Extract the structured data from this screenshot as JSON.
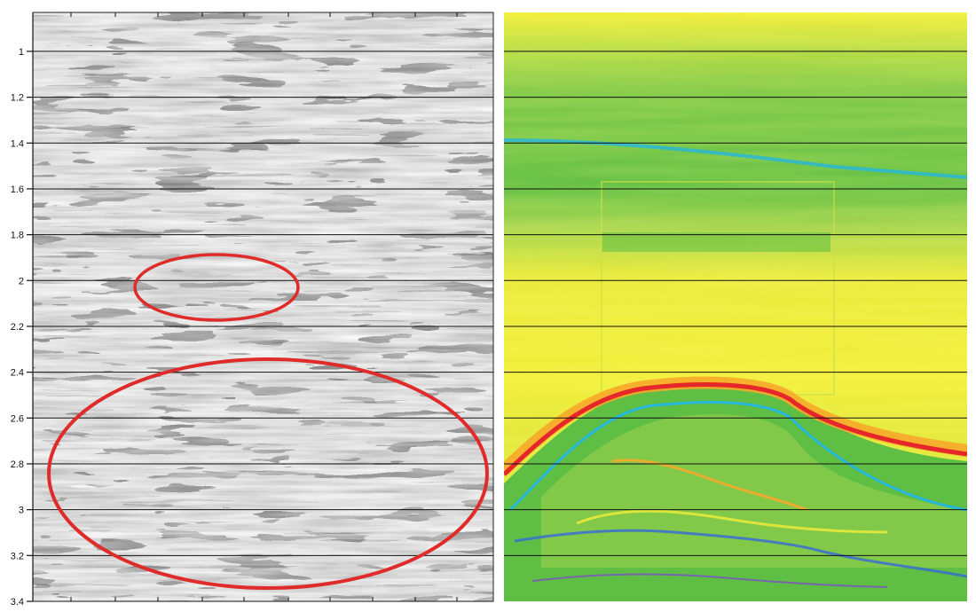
{
  "figure": {
    "time_axis": {
      "tick_labels": [
        "1",
        "1.2",
        "1.4",
        "1.6",
        "1.8",
        "2",
        "2.2",
        "2.4",
        "2.6",
        "2.8",
        "3",
        "3.2",
        "3.4"
      ],
      "tick_values": [
        1.0,
        1.2,
        1.4,
        1.6,
        1.8,
        2.0,
        2.2,
        2.4,
        2.6,
        2.8,
        3.0,
        3.2,
        3.4
      ],
      "range": [
        0.83,
        3.4
      ],
      "gridlines": true
    },
    "left_panel": {
      "kind": "grayscale seismic section",
      "highlight_color": "#e02b2b",
      "highlights": [
        {
          "name": "upper-ellipse",
          "time_range": [
            1.88,
            2.17
          ]
        },
        {
          "name": "lower-ellipse",
          "time_range": [
            2.35,
            3.35
          ]
        }
      ]
    },
    "right_panel": {
      "kind": "attribute color section",
      "colors": {
        "yellow": "#f2ee3a",
        "green": "#5fbe44",
        "light_green": "#9fd24f",
        "orange": "#f7a92a",
        "red": "#e5262a",
        "cyan": "#25b6dc",
        "blue": "#3a6fd0",
        "purple": "#7d4fc9"
      }
    }
  }
}
